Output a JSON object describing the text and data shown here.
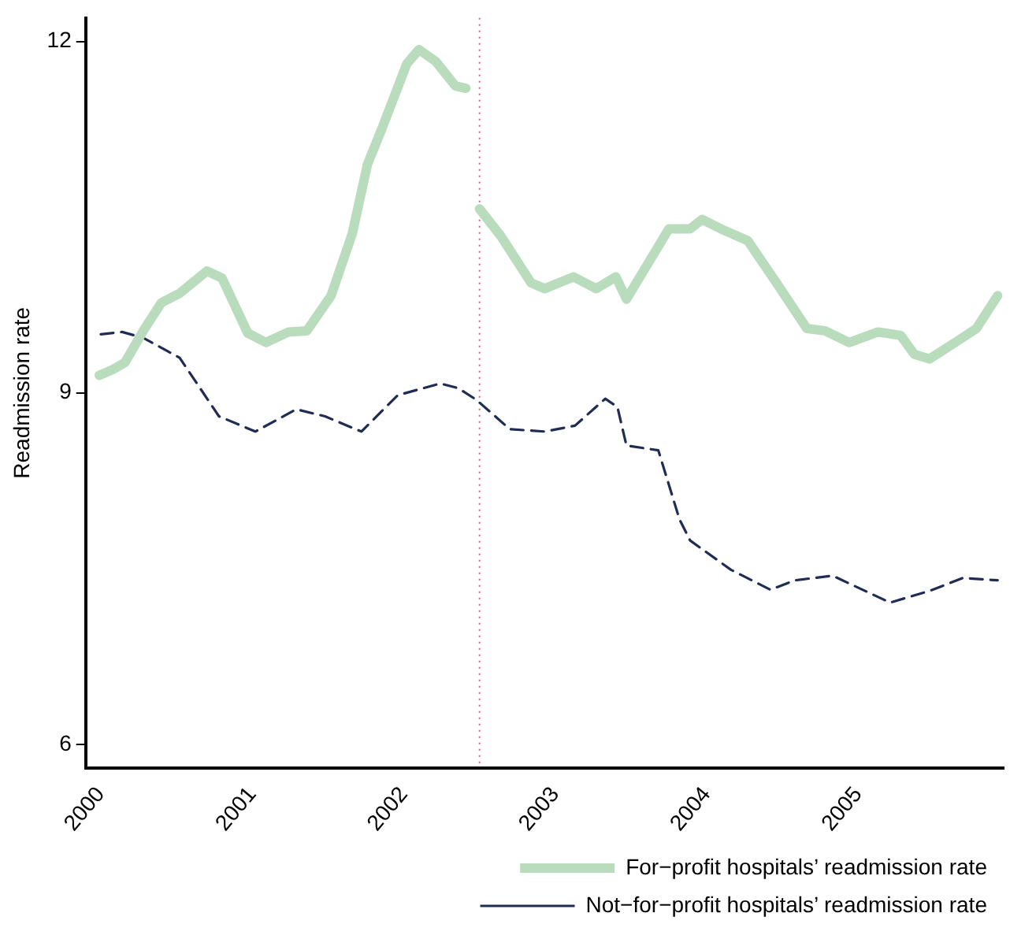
{
  "chart_data": {
    "type": "line",
    "ylabel": "Readmission rate",
    "xlim": [
      1999.9,
      2005.96
    ],
    "xticks": [
      2000,
      2001,
      2002,
      2003,
      2004,
      2005
    ],
    "ylim": [
      5.8,
      12.2
    ],
    "yticks": [
      6,
      9,
      12
    ],
    "grid": false,
    "legend": "bottom right",
    "marker": "none",
    "ref_lines": [
      {
        "axis": "x",
        "value": 2002.5,
        "color": "#e0607e",
        "line_style": "dotted"
      }
    ],
    "series": [
      {
        "name": "For−profit hospitals’ readmission rate",
        "color": "#b8dcbc",
        "line_style": "solid",
        "x": [
          1999.99,
          2000.08,
          2000.16,
          2000.28,
          2000.4,
          2000.52,
          2000.7,
          2000.8,
          2000.97,
          2001.09,
          2001.24,
          2001.36,
          2001.52,
          2001.66,
          2001.76,
          2001.86,
          2002.02,
          2002.1,
          2002.21,
          2002.34,
          2002.41,
          2002.45,
          2002.5,
          2002.64,
          2002.84,
          2002.93,
          2003.12,
          2003.27,
          2003.4,
          2003.47,
          2003.75,
          2003.89,
          2003.97,
          2004.11,
          2004.27,
          2004.47,
          2004.66,
          2004.78,
          2004.94,
          2005.13,
          2005.28,
          2005.37,
          2005.47,
          2005.64,
          2005.78,
          2005.92
        ],
        "values": [
          9.15,
          9.2,
          9.26,
          9.53,
          9.77,
          9.85,
          10.04,
          9.98,
          9.51,
          9.43,
          9.52,
          9.53,
          9.83,
          10.36,
          10.95,
          11.27,
          11.81,
          11.93,
          11.83,
          11.62,
          11.6,
          null,
          10.57,
          10.34,
          9.94,
          9.89,
          9.99,
          9.89,
          9.99,
          9.8,
          10.4,
          10.4,
          10.48,
          10.39,
          10.3,
          9.92,
          9.55,
          9.53,
          9.43,
          9.52,
          9.49,
          9.33,
          9.29,
          9.43,
          9.55,
          9.83
        ]
      },
      {
        "name": "Not−for−profit hospitals’ readmission rate",
        "color": "#1f2d54",
        "line_style": "dashed",
        "x": [
          2000.0,
          2000.14,
          2000.28,
          2000.52,
          2000.78,
          2001.02,
          2001.29,
          2001.48,
          2001.72,
          2001.96,
          2002.24,
          2002.36,
          2002.48,
          2002.7,
          2002.93,
          2003.13,
          2003.33,
          2003.41,
          2003.47,
          2003.68,
          2003.82,
          2003.89,
          2004.16,
          2004.42,
          2004.58,
          2004.83,
          2005.21,
          2005.47,
          2005.69,
          2005.92
        ],
        "values": [
          9.5,
          9.52,
          9.47,
          9.3,
          8.8,
          8.67,
          8.86,
          8.8,
          8.67,
          8.98,
          9.08,
          9.04,
          8.94,
          8.69,
          8.67,
          8.72,
          8.95,
          8.88,
          8.55,
          8.51,
          7.92,
          7.74,
          7.49,
          7.32,
          7.4,
          7.44,
          7.21,
          7.31,
          7.42,
          7.4
        ]
      }
    ]
  }
}
